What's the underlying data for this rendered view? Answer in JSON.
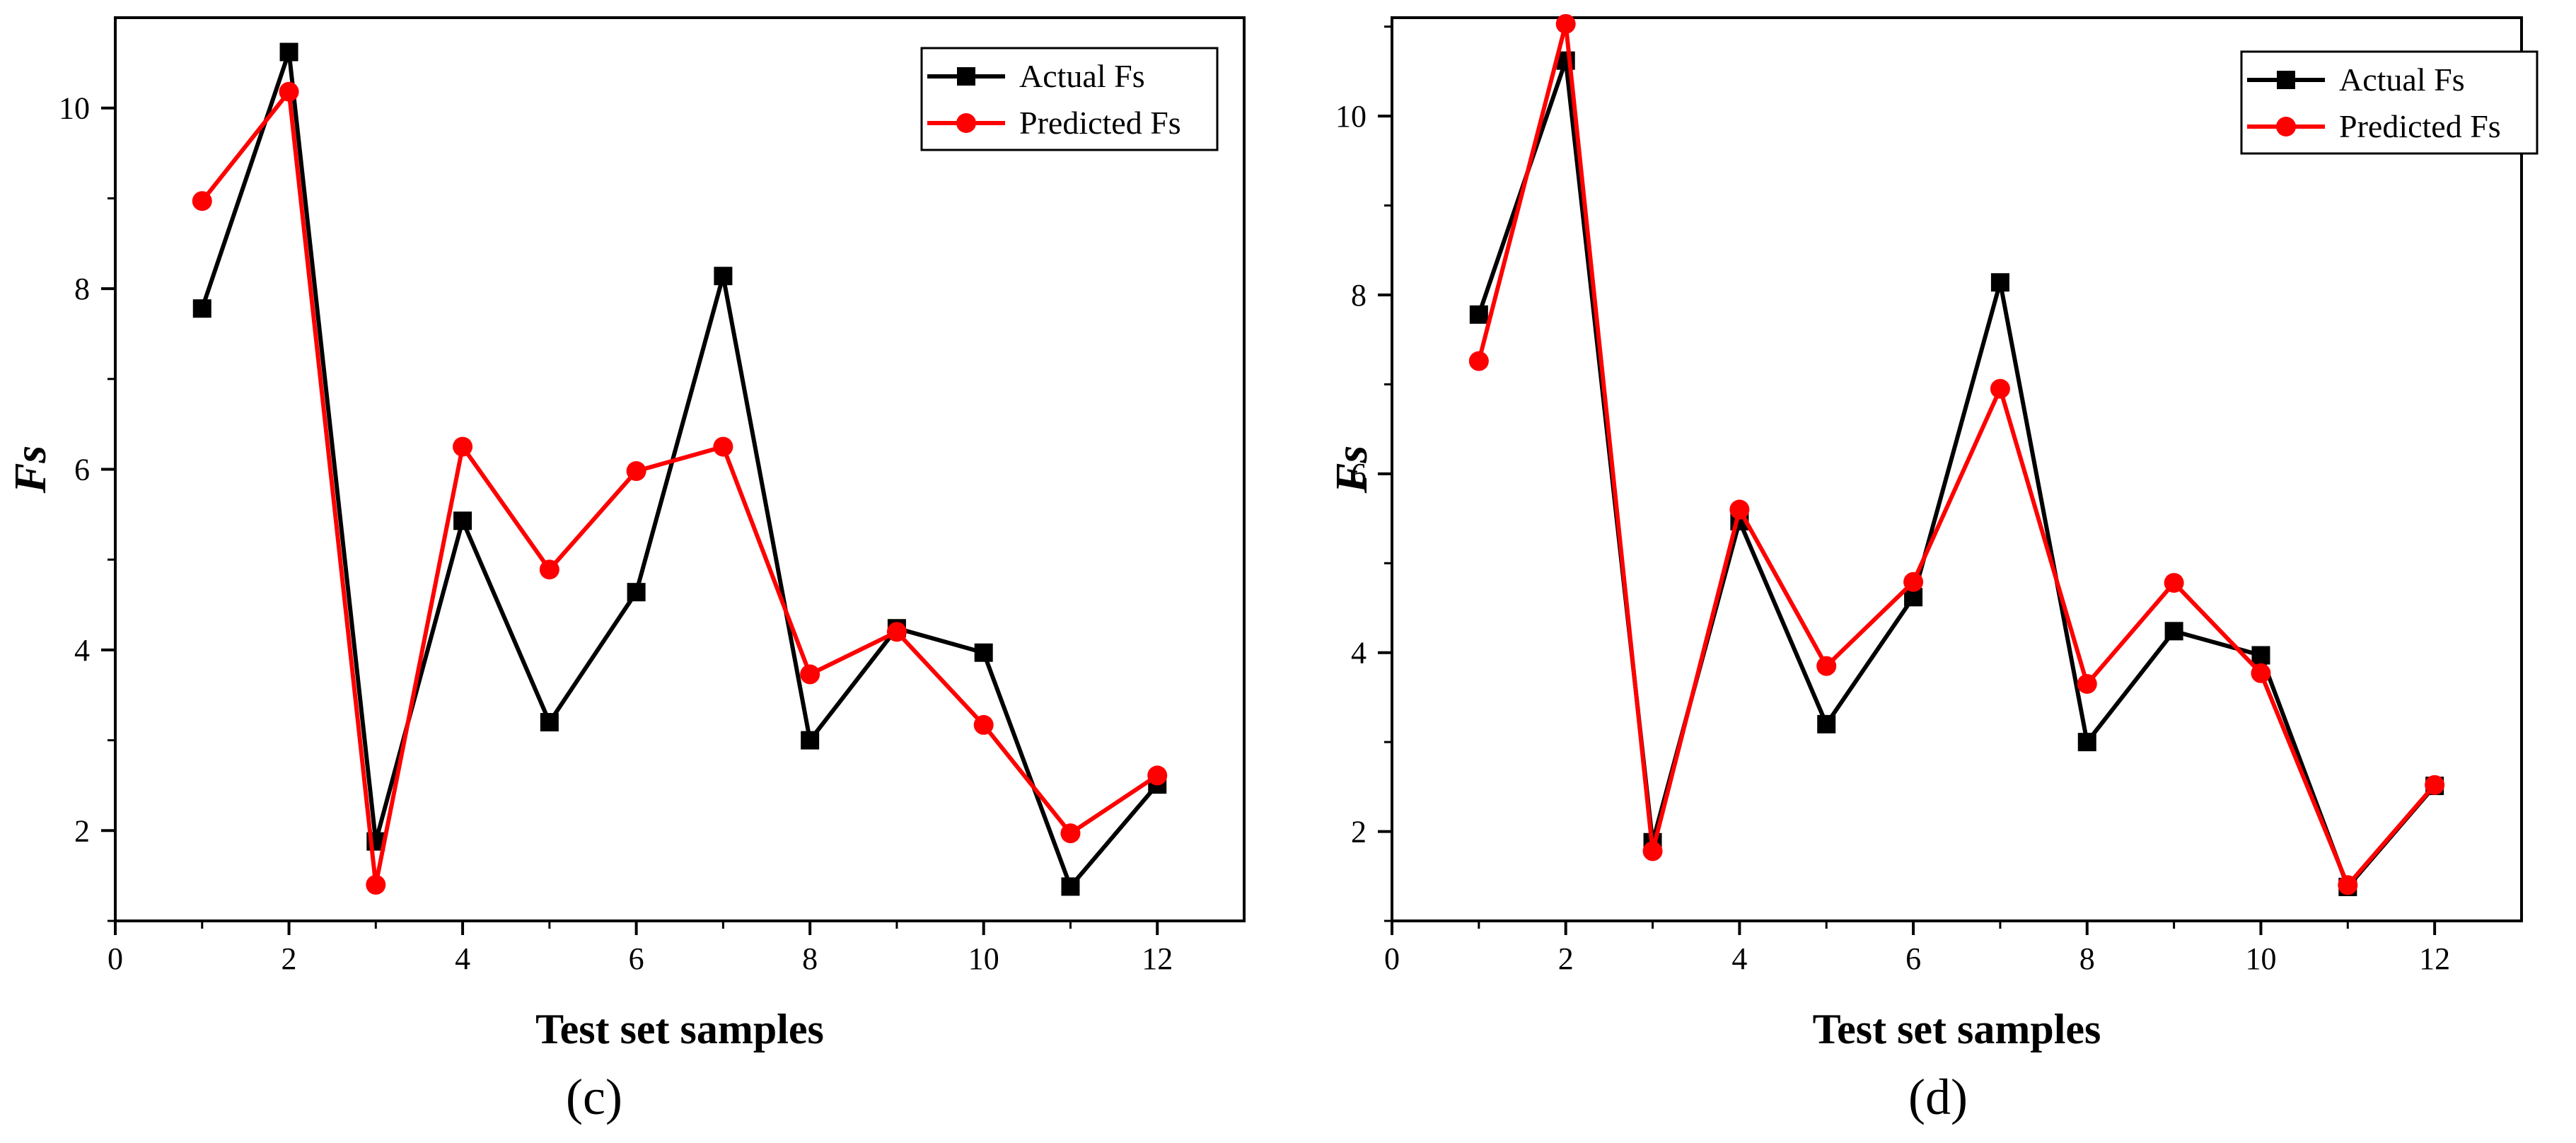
{
  "chart_data": [
    {
      "type": "line",
      "panel": "(c)",
      "xlabel": "Test set samples",
      "ylabel": "Fs",
      "xlim": [
        0,
        13
      ],
      "ylim": [
        1,
        11
      ],
      "xticks": [
        0,
        2,
        4,
        6,
        8,
        10,
        12
      ],
      "yticks": [
        2,
        4,
        6,
        8,
        10
      ],
      "legend_position": "top-right",
      "x": [
        1,
        2,
        3,
        4,
        5,
        6,
        7,
        8,
        9,
        10,
        11,
        12
      ],
      "series": [
        {
          "name": "Actual Fs",
          "color": "#000000",
          "marker": "square",
          "values": [
            7.78,
            10.62,
            1.88,
            5.43,
            3.2,
            4.64,
            8.14,
            3.0,
            4.24,
            3.97,
            1.38,
            2.51
          ]
        },
        {
          "name": "Predicted Fs",
          "color": "#ff0000",
          "marker": "circle",
          "values": [
            8.97,
            10.18,
            1.4,
            6.25,
            4.89,
            5.98,
            6.25,
            3.73,
            4.2,
            3.17,
            1.97,
            2.61
          ]
        }
      ]
    },
    {
      "type": "line",
      "panel": "(d)",
      "xlabel": "Test set samples",
      "ylabel": "Fs",
      "xlim": [
        0,
        13
      ],
      "ylim": [
        1,
        11.1
      ],
      "xticks": [
        0,
        2,
        4,
        6,
        8,
        10,
        12
      ],
      "yticks": [
        2,
        4,
        6,
        8,
        10
      ],
      "legend_position": "top-right",
      "x": [
        1,
        2,
        3,
        4,
        5,
        6,
        7,
        8,
        9,
        10,
        11,
        12
      ],
      "series": [
        {
          "name": "Actual Fs",
          "color": "#000000",
          "marker": "square",
          "values": [
            7.78,
            10.62,
            1.88,
            5.47,
            3.2,
            4.62,
            8.14,
            3.0,
            4.24,
            3.97,
            1.38,
            2.51
          ]
        },
        {
          "name": "Predicted Fs",
          "color": "#ff0000",
          "marker": "circle",
          "values": [
            7.26,
            11.03,
            1.78,
            5.6,
            3.85,
            4.79,
            6.95,
            3.65,
            4.78,
            3.77,
            1.4,
            2.52
          ]
        }
      ]
    }
  ]
}
